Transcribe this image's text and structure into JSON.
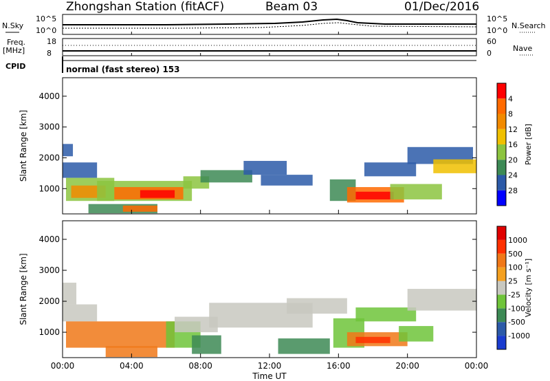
{
  "header": {
    "station": "Zhongshan Station (fitACF)",
    "beam": "Beam 03",
    "date": "01/Dec/2016"
  },
  "noise_panel": {
    "left_label": "N.Sky",
    "right_label": "N.Search",
    "left_tick_top": "10^5",
    "left_tick_bottom": "10^0",
    "right_tick_top": "10^5",
    "right_tick_bottom": "10^0"
  },
  "freq_panel": {
    "left_label_top": "Freq.",
    "left_label_bottom": "[MHz]",
    "right_label": "Nave",
    "left_tick_top": "18",
    "left_tick_bottom": "8",
    "right_tick_top": "60",
    "right_tick_bottom": "0"
  },
  "cpid": {
    "label": "CPID",
    "value": "normal (fast stereo) 153"
  },
  "chart_data": [
    {
      "type": "heatmap",
      "panel": "power",
      "ylabel": "Slant Range [km]",
      "yticks": [
        1000,
        2000,
        3000,
        4000
      ],
      "ylim": [
        180,
        4600
      ],
      "colorbar": {
        "label": "Power [dB]",
        "ticks": [
          "4",
          "8",
          "12",
          "16",
          "20",
          "24",
          "28"
        ],
        "colors": [
          "#0000ff",
          "#2c5aa8",
          "#3d8a55",
          "#8cc43f",
          "#f0c000",
          "#f28a00",
          "#ff6a00",
          "#ff0000"
        ]
      },
      "regions": [
        {
          "t0": 0.0,
          "t1": 0.6,
          "r0": 2050,
          "r1": 2450,
          "level": 1
        },
        {
          "t0": 0.0,
          "t1": 2.0,
          "r0": 1350,
          "r1": 1850,
          "level": 1
        },
        {
          "t0": 0.2,
          "t1": 3.0,
          "r0": 600,
          "r1": 1350,
          "level": 3
        },
        {
          "t0": 0.5,
          "t1": 2.5,
          "r0": 700,
          "r1": 1100,
          "level": 5
        },
        {
          "t0": 2.0,
          "t1": 7.5,
          "r0": 600,
          "r1": 1250,
          "level": 3
        },
        {
          "t0": 3.0,
          "t1": 7.0,
          "r0": 650,
          "r1": 1050,
          "level": 6
        },
        {
          "t0": 4.5,
          "t1": 6.5,
          "r0": 700,
          "r1": 950,
          "level": 7
        },
        {
          "t0": 1.5,
          "t1": 5.5,
          "r0": 200,
          "r1": 500,
          "level": 2
        },
        {
          "t0": 3.5,
          "t1": 5.5,
          "r0": 250,
          "r1": 450,
          "level": 6
        },
        {
          "t0": 7.0,
          "t1": 8.5,
          "r0": 1000,
          "r1": 1400,
          "level": 3
        },
        {
          "t0": 8.0,
          "t1": 11.0,
          "r0": 1200,
          "r1": 1600,
          "level": 2
        },
        {
          "t0": 10.5,
          "t1": 13.0,
          "r0": 1450,
          "r1": 1900,
          "level": 1
        },
        {
          "t0": 11.5,
          "t1": 14.5,
          "r0": 1100,
          "r1": 1450,
          "level": 1
        },
        {
          "t0": 15.5,
          "t1": 17.0,
          "r0": 600,
          "r1": 1300,
          "level": 2
        },
        {
          "t0": 16.5,
          "t1": 19.8,
          "r0": 550,
          "r1": 1050,
          "level": 6
        },
        {
          "t0": 17.0,
          "t1": 19.2,
          "r0": 650,
          "r1": 900,
          "level": 7
        },
        {
          "t0": 19.0,
          "t1": 22.0,
          "r0": 650,
          "r1": 1150,
          "level": 3
        },
        {
          "t0": 17.5,
          "t1": 20.5,
          "r0": 1400,
          "r1": 1850,
          "level": 1
        },
        {
          "t0": 20.0,
          "t1": 23.8,
          "r0": 1800,
          "r1": 2350,
          "level": 1
        },
        {
          "t0": 21.5,
          "t1": 24.0,
          "r0": 1500,
          "r1": 1950,
          "level": 4
        }
      ]
    },
    {
      "type": "heatmap",
      "panel": "velocity",
      "ylabel": "Slant Range [km]",
      "yticks": [
        1000,
        2000,
        3000,
        4000
      ],
      "ylim": [
        180,
        4600
      ],
      "colorbar": {
        "label": "Velocity [m s⁻¹]",
        "ticks": [
          "1000",
          "500",
          "100",
          "25",
          "-25",
          "-100",
          "-500",
          "-1000"
        ],
        "colors": [
          "#1a3ccf",
          "#2c5aa8",
          "#3d8a55",
          "#6fc43a",
          "#c8c8c0",
          "#f4a020",
          "#f07818",
          "#ff3000",
          "#e00000"
        ]
      },
      "regions": [
        {
          "t0": 0.0,
          "t1": 0.8,
          "r0": 1900,
          "r1": 2600,
          "level": 4
        },
        {
          "t0": 0.0,
          "t1": 2.0,
          "r0": 1350,
          "r1": 1900,
          "level": 4
        },
        {
          "t0": 0.2,
          "t1": 6.5,
          "r0": 500,
          "r1": 1350,
          "level": 6
        },
        {
          "t0": 2.5,
          "t1": 5.5,
          "r0": 200,
          "r1": 550,
          "level": 6
        },
        {
          "t0": 6.0,
          "t1": 8.0,
          "r0": 500,
          "r1": 1350,
          "level": 3
        },
        {
          "t0": 7.5,
          "t1": 9.2,
          "r0": 300,
          "r1": 900,
          "level": 2
        },
        {
          "t0": 6.5,
          "t1": 9.0,
          "r0": 1000,
          "r1": 1500,
          "level": 4
        },
        {
          "t0": 8.5,
          "t1": 14.5,
          "r0": 1150,
          "r1": 1950,
          "level": 4
        },
        {
          "t0": 13.0,
          "t1": 16.5,
          "r0": 1600,
          "r1": 2100,
          "level": 4
        },
        {
          "t0": 12.5,
          "t1": 15.5,
          "r0": 300,
          "r1": 800,
          "level": 2
        },
        {
          "t0": 15.7,
          "t1": 17.5,
          "r0": 500,
          "r1": 1450,
          "level": 3
        },
        {
          "t0": 16.5,
          "t1": 20.0,
          "r0": 550,
          "r1": 1000,
          "level": 6
        },
        {
          "t0": 17.0,
          "t1": 19.0,
          "r0": 650,
          "r1": 850,
          "level": 7
        },
        {
          "t0": 19.5,
          "t1": 21.5,
          "r0": 700,
          "r1": 1200,
          "level": 3
        },
        {
          "t0": 17.0,
          "t1": 20.5,
          "r0": 1350,
          "r1": 1800,
          "level": 3
        },
        {
          "t0": 20.0,
          "t1": 24.0,
          "r0": 1700,
          "r1": 2400,
          "level": 4
        }
      ]
    }
  ],
  "x_axis": {
    "label": "Time UT",
    "ticks": [
      "00:00",
      "04:00",
      "08:00",
      "12:00",
      "16:00",
      "20:00",
      "00:00"
    ]
  }
}
